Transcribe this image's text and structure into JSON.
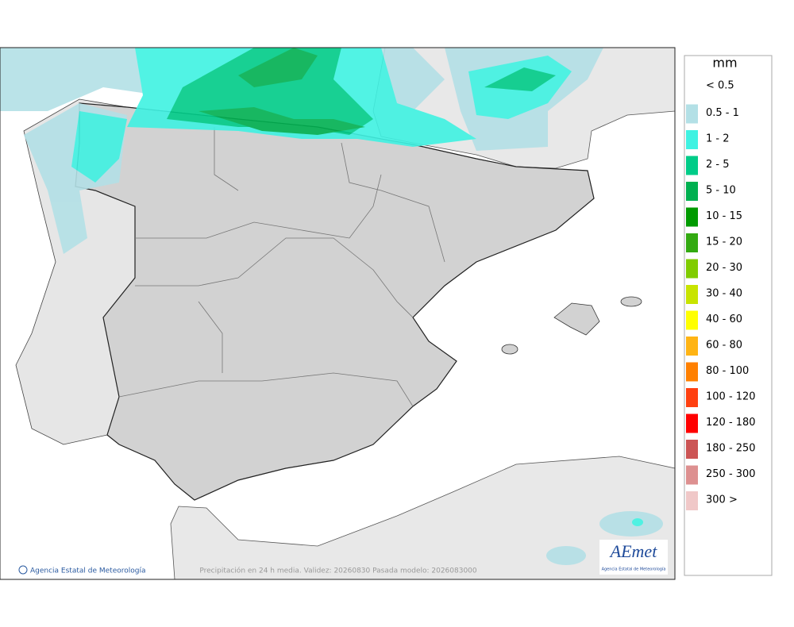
{
  "map": {
    "credit": "Agencia Estatal de Meteorología",
    "caption": "Precipitación en 24 h media. Validez: 20260830 Pasada modelo: 2026083000",
    "logo": {
      "name": "AEmet",
      "subtitle": "Agencia Estatal de Meteorología"
    }
  },
  "legend": {
    "title": "mm",
    "items": [
      {
        "label": "< 0.5"
      },
      {
        "label": "0.5 - 1",
        "color": "#b3e0e6"
      },
      {
        "label": "1 - 2",
        "color": "#3ff2e2"
      },
      {
        "label": "2 - 5",
        "color": "#00cc88"
      },
      {
        "label": "5 - 10",
        "color": "#00b050"
      },
      {
        "label": "10 - 15",
        "color": "#009a00"
      },
      {
        "label": "15 - 20",
        "color": "#33aa11"
      },
      {
        "label": "20 - 30",
        "color": "#80cc00"
      },
      {
        "label": "30 - 40",
        "color": "#c8e400"
      },
      {
        "label": "40 - 60",
        "color": "#ffff00"
      },
      {
        "label": "60 - 80",
        "color": "#ffb414"
      },
      {
        "label": "80 - 100",
        "color": "#ff8000"
      },
      {
        "label": "100 - 120",
        "color": "#ff4010"
      },
      {
        "label": "120 - 180",
        "color": "#ff0000"
      },
      {
        "label": "180 - 250",
        "color": "#cc5555"
      },
      {
        "label": "250 - 300",
        "color": "#dd9090"
      },
      {
        "label": "300 >",
        "color": "#f0c8c8"
      }
    ]
  }
}
